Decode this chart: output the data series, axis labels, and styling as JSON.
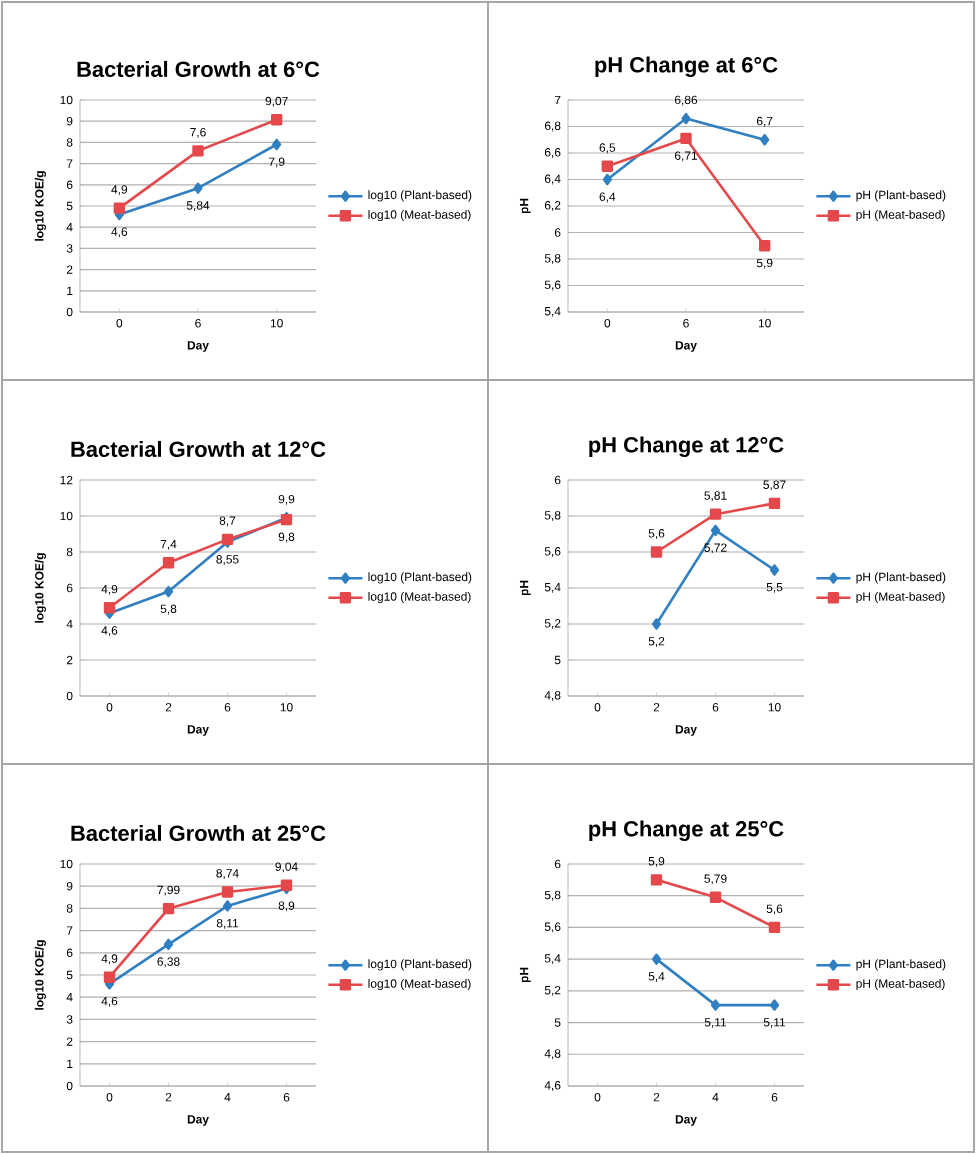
{
  "chart_data": [
    {
      "type": "line",
      "title": "Bacterial Growth at 6°C",
      "xlabel": "Day",
      "ylabel": "log10 KOE/g",
      "categories": [
        "0",
        "6",
        "10"
      ],
      "ylim": [
        0,
        10
      ],
      "yticks": [
        0,
        1,
        2,
        3,
        4,
        5,
        6,
        7,
        8,
        9,
        10
      ],
      "grid": "y",
      "legend": "right",
      "series": [
        {
          "name": "log10 (Plant-based)",
          "color": "#2f7fc1",
          "marker": "diamond",
          "values": [
            4.6,
            5.84,
            7.9
          ],
          "value_labels": [
            "4,6",
            "5,84",
            "7,9"
          ]
        },
        {
          "name": "log10 (Meat-based)",
          "color": "#e5484b",
          "marker": "square",
          "values": [
            4.9,
            7.6,
            9.07
          ],
          "value_labels": [
            "4,9",
            "7,6",
            "9,07"
          ]
        }
      ]
    },
    {
      "type": "line",
      "title": "pH Change at 6°C",
      "xlabel": "Day",
      "ylabel": "pH",
      "categories": [
        "0",
        "6",
        "10"
      ],
      "ylim": [
        5.4,
        7
      ],
      "yticks": [
        {
          "value": 5.4,
          "label": "5,4"
        },
        {
          "value": 5.6,
          "label": "5,6"
        },
        {
          "value": 5.8,
          "label": "5,8"
        },
        {
          "value": 6,
          "label": "6"
        },
        {
          "value": 6.2,
          "label": "6,2"
        },
        {
          "value": 6.4,
          "label": "6,4"
        },
        {
          "value": 6.6,
          "label": "6,6"
        },
        {
          "value": 6.8,
          "label": "6,8"
        },
        {
          "value": 7,
          "label": "7"
        }
      ],
      "grid": "y",
      "legend": "right",
      "series": [
        {
          "name": "pH (Plant-based)",
          "color": "#2f7fc1",
          "marker": "diamond",
          "values": [
            6.4,
            6.86,
            6.7
          ],
          "value_labels": [
            "6,4",
            "6,86",
            "6,7"
          ]
        },
        {
          "name": "pH (Meat-based)",
          "color": "#e5484b",
          "marker": "square",
          "values": [
            6.5,
            6.71,
            5.9
          ],
          "value_labels": [
            "6,5",
            "6,71",
            "5,9"
          ]
        }
      ]
    },
    {
      "type": "line",
      "title": "Bacterial Growth at 12°C",
      "xlabel": "Day",
      "ylabel": "log10 KOE/g",
      "categories": [
        "0",
        "2",
        "6",
        "10"
      ],
      "ylim": [
        0,
        12
      ],
      "yticks": [
        0,
        2,
        4,
        6,
        8,
        10,
        12
      ],
      "grid": "y",
      "legend": "right",
      "series": [
        {
          "name": "log10 (Plant-based)",
          "color": "#2f7fc1",
          "marker": "diamond",
          "values": [
            4.6,
            5.8,
            8.55,
            9.9
          ],
          "value_labels": [
            "4,6",
            "5,8",
            "8,55",
            "9,9"
          ]
        },
        {
          "name": "log10 (Meat-based)",
          "color": "#e5484b",
          "marker": "square",
          "values": [
            4.9,
            7.4,
            8.7,
            9.8
          ],
          "value_labels": [
            "4,9",
            "7,4",
            "8,7",
            "9,8"
          ]
        }
      ]
    },
    {
      "type": "line",
      "title": "pH Change at 12°C",
      "xlabel": "Day",
      "ylabel": "pH",
      "categories": [
        "0",
        "2",
        "6",
        "10"
      ],
      "ylim": [
        4.8,
        6
      ],
      "yticks": [
        {
          "value": 4.8,
          "label": "4,8"
        },
        {
          "value": 5,
          "label": "5"
        },
        {
          "value": 5.2,
          "label": "5,2"
        },
        {
          "value": 5.4,
          "label": "5,4"
        },
        {
          "value": 5.6,
          "label": "5,6"
        },
        {
          "value": 5.8,
          "label": "5,8"
        },
        {
          "value": 6,
          "label": "6"
        }
      ],
      "grid": "y",
      "legend": "right",
      "series": [
        {
          "name": "pH (Plant-based)",
          "color": "#2f7fc1",
          "marker": "diamond",
          "values": [
            null,
            5.2,
            5.72,
            5.5
          ],
          "value_labels": [
            null,
            "5,2",
            "5,72",
            "5,5"
          ]
        },
        {
          "name": "pH (Meat-based)",
          "color": "#e5484b",
          "marker": "square",
          "values": [
            null,
            5.6,
            5.81,
            5.87
          ],
          "value_labels": [
            null,
            "5,6",
            "5,81",
            "5,87"
          ]
        }
      ]
    },
    {
      "type": "line",
      "title": "Bacterial Growth at 25°C",
      "xlabel": "Day",
      "ylabel": "log10 KOE/g",
      "categories": [
        "0",
        "2",
        "4",
        "6"
      ],
      "ylim": [
        0,
        10
      ],
      "yticks": [
        0,
        1,
        2,
        3,
        4,
        5,
        6,
        7,
        8,
        9,
        10
      ],
      "grid": "y",
      "legend": "right",
      "series": [
        {
          "name": "log10 (Plant-based)",
          "color": "#2f7fc1",
          "marker": "diamond",
          "values": [
            4.6,
            6.38,
            8.11,
            8.9
          ],
          "value_labels": [
            "4,6",
            "6,38",
            "8,11",
            "8,9"
          ]
        },
        {
          "name": "log10 (Meat-based)",
          "color": "#e5484b",
          "marker": "square",
          "values": [
            4.9,
            7.99,
            8.74,
            9.04
          ],
          "value_labels": [
            "4,9",
            "7,99",
            "8,74",
            "9,04"
          ]
        }
      ]
    },
    {
      "type": "line",
      "title": "pH Change at 25°C",
      "xlabel": "Day",
      "ylabel": "pH",
      "categories": [
        "0",
        "2",
        "4",
        "6"
      ],
      "ylim": [
        4.6,
        6
      ],
      "yticks": [
        {
          "value": 4.6,
          "label": "4,6"
        },
        {
          "value": 4.8,
          "label": "4,8"
        },
        {
          "value": 5,
          "label": "5"
        },
        {
          "value": 5.2,
          "label": "5,2"
        },
        {
          "value": 5.4,
          "label": "5,4"
        },
        {
          "value": 5.6,
          "label": "5,6"
        },
        {
          "value": 5.8,
          "label": "5,8"
        },
        {
          "value": 6,
          "label": "6"
        }
      ],
      "grid": "y",
      "legend": "right",
      "series": [
        {
          "name": "pH (Plant-based)",
          "color": "#2f7fc1",
          "marker": "diamond",
          "values": [
            null,
            5.4,
            5.11,
            5.11
          ],
          "value_labels": [
            null,
            "5,4",
            "5,11",
            "5,11"
          ]
        },
        {
          "name": "pH (Meat-based)",
          "color": "#e5484b",
          "marker": "square",
          "values": [
            null,
            5.9,
            5.79,
            5.6
          ],
          "value_labels": [
            null,
            "5,9",
            "5,79",
            "5,6"
          ]
        }
      ]
    }
  ]
}
